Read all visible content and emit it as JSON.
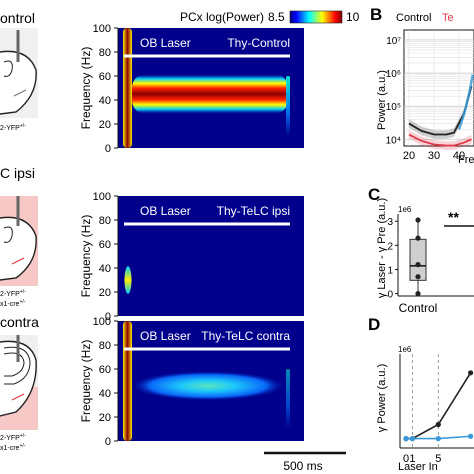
{
  "left_strip": {
    "row1_label": "ontrol",
    "row1_small": "2-YFP",
    "row2_label": "C ipsi",
    "row2_small_a": "2-YFP",
    "row2_small_b": "x1-cre",
    "row3_label": "contra",
    "row3_small_a": "2-YFP",
    "row3_small_b": "x1-cre",
    "sup_plus_plus": "+/+",
    "sup_plus_minus": "+/-"
  },
  "colors": {
    "jet": [
      "#00007f",
      "#0000ff",
      "#00ffff",
      "#ffff00",
      "#ff0000",
      "#7f0000"
    ],
    "background": "#00008c",
    "laser_bar": "#ffffff",
    "pink_region": "#f7c9c6",
    "control_series": "#222222",
    "telc_series": "#e0394b",
    "blue_series": "#3a9ad9"
  },
  "heatmaps": {
    "colorbar_title": "PCx log(Power)",
    "colorbar_min": "8.5",
    "colorbar_max": "10",
    "ylabel": "Frequency (Hz)",
    "ytick_labels": [
      "0",
      "20",
      "40",
      "60",
      "80",
      "100"
    ],
    "laser_label": "OB Laser",
    "scalebar_label": "500 ms",
    "panels": [
      {
        "title": "Thy-Control",
        "gamma_level": 1.0,
        "burst_level": 1.0,
        "offset_level": 0.9
      },
      {
        "title": "Thy-TeLC ipsi",
        "gamma_level": 0.0,
        "burst_level": 0.55,
        "offset_level": 0.0
      },
      {
        "title": "Thy-TeLC contra",
        "gamma_level": 0.42,
        "burst_level": 1.0,
        "offset_level": 0.55
      }
    ]
  },
  "panel_letters": {
    "b": "B",
    "c": "C",
    "d": "D"
  },
  "chart_data": [
    {
      "type": "line",
      "panel": "B",
      "legend": [
        "Control",
        "Te"
      ],
      "ylabel": "Power (a.u.)",
      "xlabel": "Free",
      "xtick_labels": [
        "20",
        "30",
        "40"
      ],
      "ytick_labels": [
        "10⁴",
        "10⁵",
        "10⁶",
        "10⁷"
      ],
      "x": [
        20,
        25,
        30,
        35,
        38,
        42,
        45
      ],
      "series": [
        {
          "name": "Control",
          "values": [
            30000,
            18000,
            14000,
            14000,
            16000,
            60000,
            400000
          ]
        },
        {
          "name": "Te",
          "values": [
            14000,
            9000,
            7000,
            6500,
            6500,
            8000,
            10000
          ]
        }
      ]
    },
    {
      "type": "box",
      "panel": "C",
      "ylabel": "γ Laser - γ Pre (a.u.)",
      "exponent_label": "1e6",
      "ytick_labels": [
        "0",
        "1",
        "2",
        "3"
      ],
      "ylim": [
        -0.1,
        3.3
      ],
      "categories": [
        "Control"
      ],
      "box": {
        "min": 0.0,
        "q1": 0.55,
        "median": 1.15,
        "q3": 2.25,
        "max": 3.05
      },
      "points": [
        0.0,
        0.7,
        1.2,
        2.3,
        3.05
      ],
      "significance": "**"
    },
    {
      "type": "line",
      "panel": "D",
      "ylabel": "γ Power (a.u.)",
      "exponent_label": "1e6",
      "xlabel": "Laser In",
      "xtick_labels": [
        "0",
        "1",
        "5"
      ],
      "x": [
        0,
        1,
        5,
        10
      ],
      "series": [
        {
          "name": "",
          "values": [
            0.2,
            0.2,
            0.5,
            1.6
          ]
        },
        {
          "name": "",
          "values": [
            0.2,
            0.2,
            0.2,
            0.25
          ]
        }
      ]
    }
  ]
}
